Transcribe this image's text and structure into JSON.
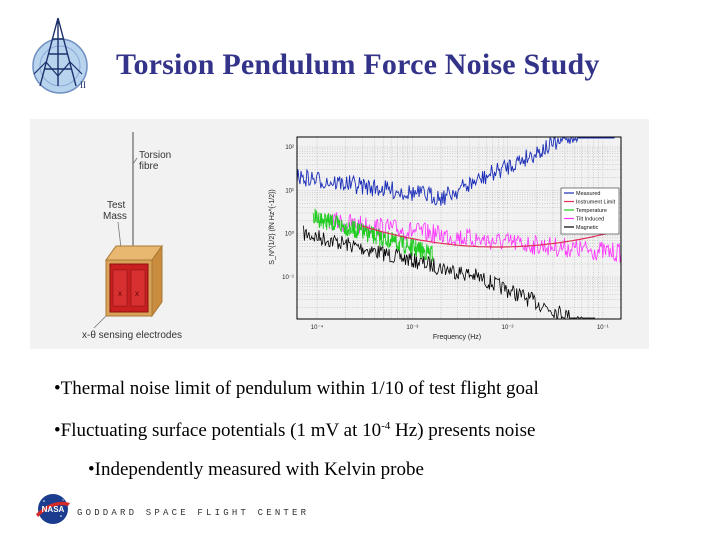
{
  "slide": {
    "title": "Torsion Pendulum Force Noise Study",
    "apparatus": {
      "torsion_label_1": "Torsion",
      "torsion_label_2": "fibre",
      "test_label_1": "Test",
      "test_label_2": "Mass",
      "sensing_label": "x-θ sensing electrodes",
      "colors": {
        "electrode": "#cc2222",
        "housing": "#d9a35a"
      }
    },
    "plot": {
      "ylabel": "S_N^{1/2} (fN Hz^{-1/2})",
      "xlabel": "Frequency (Hz)",
      "x_ticks": [
        "10⁻⁴",
        "10⁻³",
        "10⁻²",
        "10⁻¹"
      ],
      "y_ticks": [
        "10²",
        "10¹",
        "10⁰",
        "10⁻¹"
      ],
      "legend": [
        "Measured",
        "Instrument Limit",
        "Temperature",
        "Tilt Induced",
        "Magnetic"
      ],
      "series_colors": [
        "#1c2fb8",
        "#e0305a",
        "#22cc22",
        "#ff33ff",
        "#000000"
      ]
    },
    "bullets": {
      "b1": "•Thermal noise limit of pendulum within 1/10 of test flight goal",
      "b2_pre": "•Fluctuating surface potentials (1 mV at 10",
      "b2_sup": "-4",
      "b2_post": " Hz) presents noise",
      "b3": "•Independently measured with Kelvin probe"
    },
    "footer": {
      "text": "GODDARD SPACE FLIGHT CENTER",
      "nasa": "NASA"
    },
    "colors": {
      "title": "#33338a",
      "nasa_blue": "#1b3c8f",
      "nasa_red": "#d42a2a"
    }
  }
}
